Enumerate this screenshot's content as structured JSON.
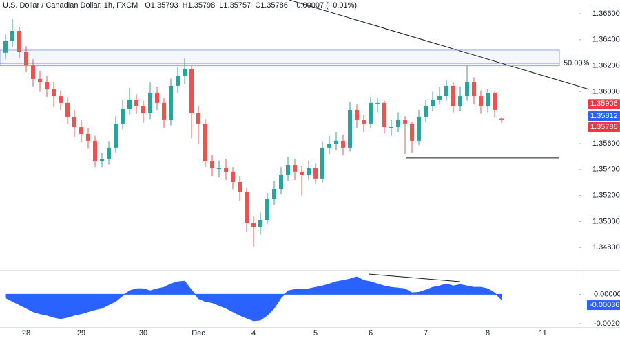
{
  "chart_data": {
    "type": "candlestick",
    "title": "U.S. Dollar / Canadian Dollar, 1h, FXCM",
    "ohlc_labels": [
      "O1.35793",
      "H1.35798",
      "L1.35757",
      "C1.35786",
      "−0.00007 (−0.01%)"
    ],
    "categories": [
      null,
      null,
      null,
      "28",
      null,
      null,
      null,
      null,
      null,
      null,
      null,
      "29",
      null,
      null,
      null,
      null,
      null,
      null,
      null,
      null,
      "30",
      null,
      null,
      null,
      null,
      null,
      null,
      null,
      "Dec",
      null,
      null,
      null,
      null,
      null,
      null,
      null,
      "4",
      null,
      null,
      null,
      null,
      null,
      null,
      null,
      null,
      "5",
      null,
      null,
      null,
      null,
      null,
      null,
      null,
      "6",
      null,
      null,
      null,
      null,
      null,
      null,
      null,
      "7",
      null,
      null,
      null,
      null,
      null,
      null,
      null,
      null,
      "8",
      null,
      null,
      null,
      null,
      null,
      null,
      null,
      "11"
    ],
    "open": [
      1.363,
      1.36389,
      1.36468,
      1.36309,
      1.36203,
      1.36098,
      1.36071,
      1.36018,
      1.35965,
      1.35913,
      1.35807,
      1.35727,
      1.35674,
      1.35622,
      1.35463,
      1.35479,
      1.35569,
      1.35754,
      1.3587,
      1.35939,
      1.35886,
      1.35833,
      1.35992,
      1.35913,
      1.3578,
      1.36045,
      1.36124,
      1.36177,
      1.35833,
      1.35754,
      1.35463,
      1.3541,
      1.3541,
      1.35384,
      1.35304,
      1.35225,
      1.34987,
      1.3496,
      1.35013,
      1.35172,
      1.35251,
      1.35357,
      1.35436,
      1.35384,
      1.35357,
      1.3541,
      1.35331,
      1.35569,
      1.35595,
      1.35622,
      1.35569,
      1.3586,
      1.3578,
      1.35754,
      1.35913,
      1.35913,
      1.35727,
      1.35727,
      1.3578,
      1.35754,
      1.35622,
      1.35807,
      1.35886,
      1.35939,
      1.35965,
      1.36045,
      1.35886,
      1.35965,
      1.36071,
      1.35965,
      1.35886,
      1.35992,
      1.35793,
      null,
      null,
      null,
      null,
      null,
      null
    ],
    "high": [
      1.3644,
      1.3656,
      1.365,
      1.3635,
      1.3625,
      1.3616,
      1.3612,
      1.3607,
      1.3601,
      1.3596,
      1.3586,
      1.3578,
      1.3572,
      1.3566,
      1.3553,
      1.3562,
      1.3581,
      1.3594,
      1.3603,
      1.3598,
      1.3593,
      1.3607,
      1.3604,
      1.3595,
      1.361,
      1.3619,
      1.36256,
      1.362,
      1.3589,
      1.3579,
      1.3551,
      1.3547,
      1.3548,
      1.3542,
      1.3535,
      1.3526,
      1.3504,
      1.3507,
      1.3522,
      1.3531,
      1.3542,
      1.355,
      1.3548,
      1.3543,
      1.3547,
      1.3545,
      1.3562,
      1.3566,
      1.3569,
      1.3567,
      1.3592,
      1.359,
      1.3582,
      1.3596,
      1.3595,
      1.3593,
      1.3578,
      1.3584,
      1.3581,
      1.3577,
      1.3586,
      1.3594,
      1.36,
      1.3604,
      1.3609,
      1.3607,
      1.3604,
      1.362,
      1.3611,
      1.3601,
      1.3602,
      1.36,
      1.35798,
      null,
      null,
      null,
      null,
      null,
      null
    ],
    "low": [
      1.3625,
      1.3634,
      1.3626,
      1.3615,
      1.3604,
      1.36,
      1.3596,
      1.3588,
      1.3586,
      1.3575,
      1.3565,
      1.3561,
      1.3556,
      1.3542,
      1.3542,
      1.3544,
      1.3553,
      1.3571,
      1.3582,
      1.3583,
      1.3576,
      1.3579,
      1.3586,
      1.3572,
      1.3574,
      1.3599,
      1.3606,
      1.3564,
      1.356,
      1.3542,
      1.3535,
      1.3534,
      1.3532,
      1.3525,
      1.3516,
      1.3492,
      1.34802,
      1.349,
      1.3498,
      1.3513,
      1.3521,
      1.3531,
      1.3532,
      1.352,
      1.3532,
      1.3529,
      1.353,
      1.3552,
      1.3555,
      1.3551,
      1.3554,
      1.3572,
      1.3569,
      1.3572,
      1.3584,
      1.3568,
      1.3566,
      1.3569,
      1.3552,
      1.3553,
      1.3559,
      1.3577,
      1.3585,
      1.359,
      1.3593,
      1.3584,
      1.3585,
      1.3593,
      1.359,
      1.3583,
      1.3584,
      1.358,
      1.35757,
      null,
      null,
      null,
      null,
      null,
      null
    ],
    "close": [
      1.36389,
      1.36468,
      1.36309,
      1.36203,
      1.36098,
      1.36071,
      1.36018,
      1.35965,
      1.35913,
      1.35807,
      1.35727,
      1.35674,
      1.35622,
      1.35463,
      1.35479,
      1.35569,
      1.35754,
      1.3587,
      1.35939,
      1.35886,
      1.35833,
      1.35992,
      1.35913,
      1.3578,
      1.36045,
      1.36124,
      1.36177,
      1.35833,
      1.35754,
      1.35463,
      1.3541,
      1.3541,
      1.35384,
      1.35304,
      1.35225,
      1.34987,
      1.3496,
      1.35013,
      1.35172,
      1.35251,
      1.35357,
      1.35436,
      1.35384,
      1.35357,
      1.3541,
      1.35331,
      1.35569,
      1.35595,
      1.35622,
      1.35569,
      1.3586,
      1.3578,
      1.35754,
      1.35913,
      1.35913,
      1.35727,
      1.35727,
      1.3578,
      1.35754,
      1.35622,
      1.35807,
      1.35886,
      1.35939,
      1.35965,
      1.36045,
      1.35886,
      1.35965,
      1.36071,
      1.35965,
      1.35886,
      1.35992,
      1.3586,
      1.35786,
      null,
      null,
      null,
      null,
      null,
      null
    ],
    "up_color": "#26a69a",
    "down_color": "#ef5350",
    "ylim": [
      1.34632,
      1.36706
    ],
    "yticks": [
      {
        "value": 1.366,
        "label": "1.36600"
      },
      {
        "value": 1.364,
        "label": "1.36400"
      },
      {
        "value": 1.362,
        "label": "1.36200"
      },
      {
        "value": 1.36,
        "label": "1.36000"
      },
      {
        "value": 1.356,
        "label": "1.35600"
      },
      {
        "value": 1.354,
        "label": "1.35400"
      },
      {
        "value": 1.352,
        "label": "1.35200"
      },
      {
        "value": 1.35,
        "label": "1.35000"
      },
      {
        "value": 1.348,
        "label": "1.34800"
      }
    ],
    "price_tags": [
      {
        "value": 1.35906,
        "label": "1.35906",
        "color": "#f23645"
      },
      {
        "value": 1.35812,
        "label": "1.35812",
        "color": "#2962ff"
      },
      {
        "value": 1.35786,
        "label": "1.35786",
        "color": "#f23645"
      }
    ],
    "zone": [
      1.362,
      1.3632
    ],
    "fib_level": {
      "value": 1.3622,
      "label": "50.00%",
      "color": "#7e57c2"
    },
    "support": 1.3549,
    "oscillator": {
      "color": "#2962ff",
      "values": [
        -0.00024,
        -0.00048,
        -0.00071,
        -0.00095,
        -0.00119,
        -0.00133,
        -0.00143,
        -0.00157,
        -0.00167,
        -0.00157,
        -0.00143,
        -0.00133,
        -0.00119,
        -0.00105,
        -0.00095,
        -0.00071,
        -0.00048,
        -0.0001,
        0.00024,
        0.00038,
        0.00038,
        0.00024,
        0.00038,
        0.00048,
        0.00071,
        0.00086,
        0.0009,
        0.00029,
        -0.00029,
        -0.00048,
        -0.00057,
        -0.00076,
        -0.00095,
        -0.00119,
        -0.00143,
        -0.00162,
        -0.00181,
        -0.00176,
        -0.00143,
        -0.00095,
        -0.00024,
        0.00024,
        0.00033,
        0.00033,
        0.00038,
        0.00048,
        0.00057,
        0.00071,
        0.00086,
        0.00095,
        0.00105,
        0.00119,
        0.00095,
        0.00086,
        0.00071,
        0.00057,
        0.00048,
        0.00043,
        0.00038,
        0.0001,
        0.00014,
        0.00029,
        0.00048,
        0.00057,
        0.00071,
        0.00057,
        0.00067,
        0.00057,
        0.00048,
        0.00048,
        0.00038,
        0.0001,
        -0.00036,
        null,
        null,
        null,
        null,
        null,
        null
      ],
      "ylim": [
        -0.00205,
        0.00157
      ],
      "yticks": [
        {
          "value": 0,
          "label": "0.00000"
        },
        {
          "value": -0.002,
          "label": "-0.00200"
        }
      ],
      "current": {
        "value": -0.00036,
        "label": "-0.00036"
      }
    }
  }
}
